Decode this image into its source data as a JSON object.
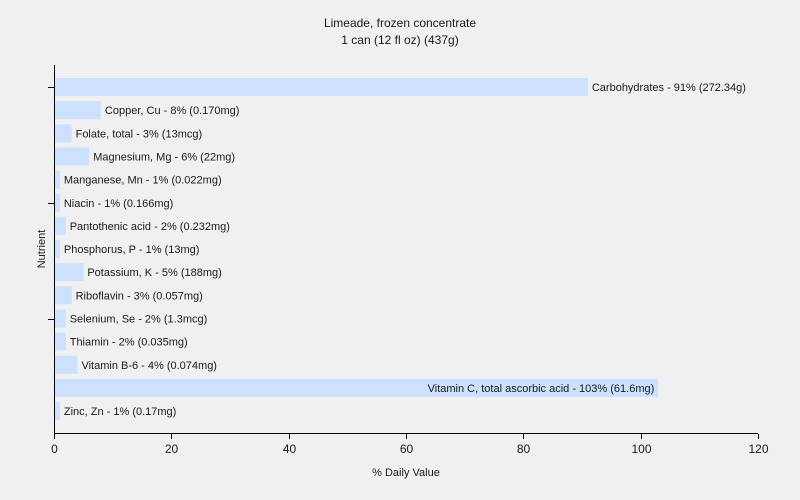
{
  "chart_data": {
    "type": "bar",
    "orientation": "horizontal",
    "title": "Limeade, frozen concentrate",
    "subtitle": "1 can (12 fl oz) (437g)",
    "xlabel": "% Daily Value",
    "ylabel": "Nutrient",
    "xlim": [
      0,
      120
    ],
    "xticks": [
      0,
      20,
      40,
      60,
      80,
      100,
      120
    ],
    "bar_color": "#cce0ff",
    "categories": [
      "Carbohydrates",
      "Copper, Cu",
      "Folate, total",
      "Magnesium, Mg",
      "Manganese, Mn",
      "Niacin",
      "Pantothenic acid",
      "Phosphorus, P",
      "Potassium, K",
      "Riboflavin",
      "Selenium, Se",
      "Thiamin",
      "Vitamin B-6",
      "Vitamin C, total ascorbic acid",
      "Zinc, Zn"
    ],
    "values": [
      91,
      8,
      3,
      6,
      1,
      1,
      2,
      1,
      5,
      3,
      2,
      2,
      4,
      103,
      1
    ],
    "labels": [
      "Carbohydrates - 91% (272.34g)",
      "Copper, Cu - 8% (0.170mg)",
      "Folate, total - 3% (13mcg)",
      "Magnesium, Mg - 6% (22mg)",
      "Manganese, Mn - 1% (0.022mg)",
      "Niacin - 1% (0.166mg)",
      "Pantothenic acid - 2% (0.232mg)",
      "Phosphorus, P - 1% (13mg)",
      "Potassium, K - 5% (188mg)",
      "Riboflavin - 3% (0.057mg)",
      "Selenium, Se - 2% (1.3mcg)",
      "Thiamin - 2% (0.035mg)",
      "Vitamin B-6 - 4% (0.074mg)",
      "Vitamin C, total ascorbic acid - 103% (61.6mg)",
      "Zinc, Zn - 1% (0.17mg)"
    ]
  }
}
